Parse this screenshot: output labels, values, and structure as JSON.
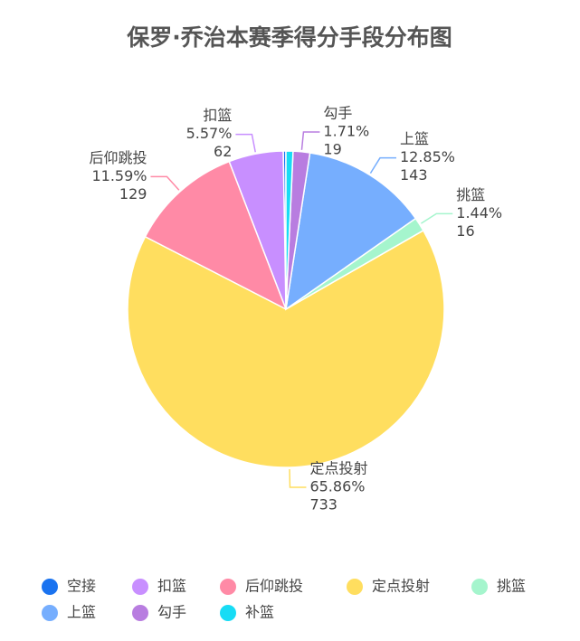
{
  "chart_data": {
    "type": "pie",
    "title": "保罗·乔治本赛季得分手段分布图",
    "categories": [
      "空接",
      "扣篮",
      "后仰跳投",
      "定点投射",
      "挑篮",
      "上篮",
      "勾手",
      "补篮"
    ],
    "values": [
      3,
      62,
      129,
      733,
      16,
      143,
      19,
      8
    ],
    "percent_labels": [
      null,
      "5.57%",
      "11.59%",
      "65.86%",
      "1.44%",
      "12.85%",
      "1.71%",
      null
    ],
    "colors": [
      "#1a73f0",
      "#c88fff",
      "#ff8aa6",
      "#ffde5f",
      "#a5f5cd",
      "#76aefe",
      "#b87de0",
      "#17dcf5"
    ],
    "legend": "bottom"
  }
}
